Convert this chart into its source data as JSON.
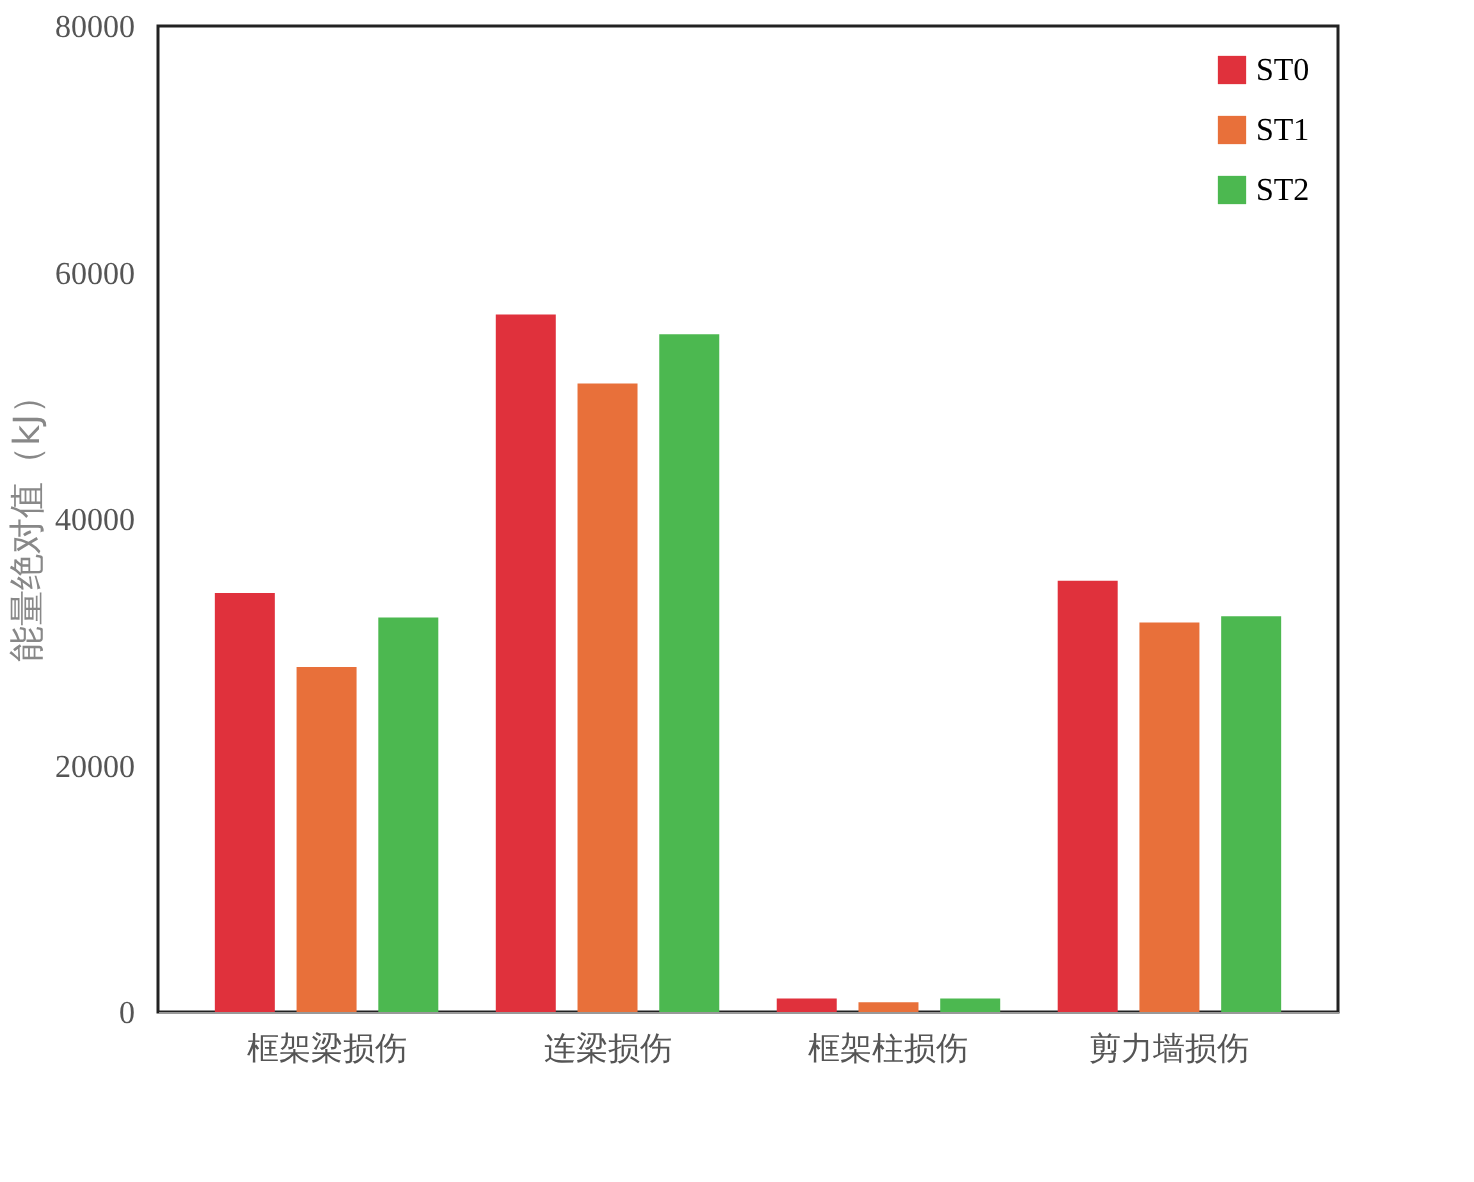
{
  "chart_data": {
    "type": "bar",
    "ylabel": "能量绝对值（kJ）",
    "categories": [
      "框架梁损伤",
      "连梁损伤",
      "框架柱损伤",
      "剪力墙损伤"
    ],
    "series": [
      {
        "name": "ST0",
        "color": "#e0313c",
        "values": [
          34000,
          56600,
          1100,
          35000
        ]
      },
      {
        "name": "ST1",
        "color": "#e8703a",
        "values": [
          28000,
          51000,
          800,
          31600
        ]
      },
      {
        "name": "ST2",
        "color": "#4cb850",
        "values": [
          32000,
          55000,
          1100,
          32100
        ]
      }
    ],
    "ylim": [
      0,
      80000
    ],
    "yticks": [
      0,
      20000,
      40000,
      60000,
      80000
    ],
    "grid": false,
    "legend": "top right"
  }
}
